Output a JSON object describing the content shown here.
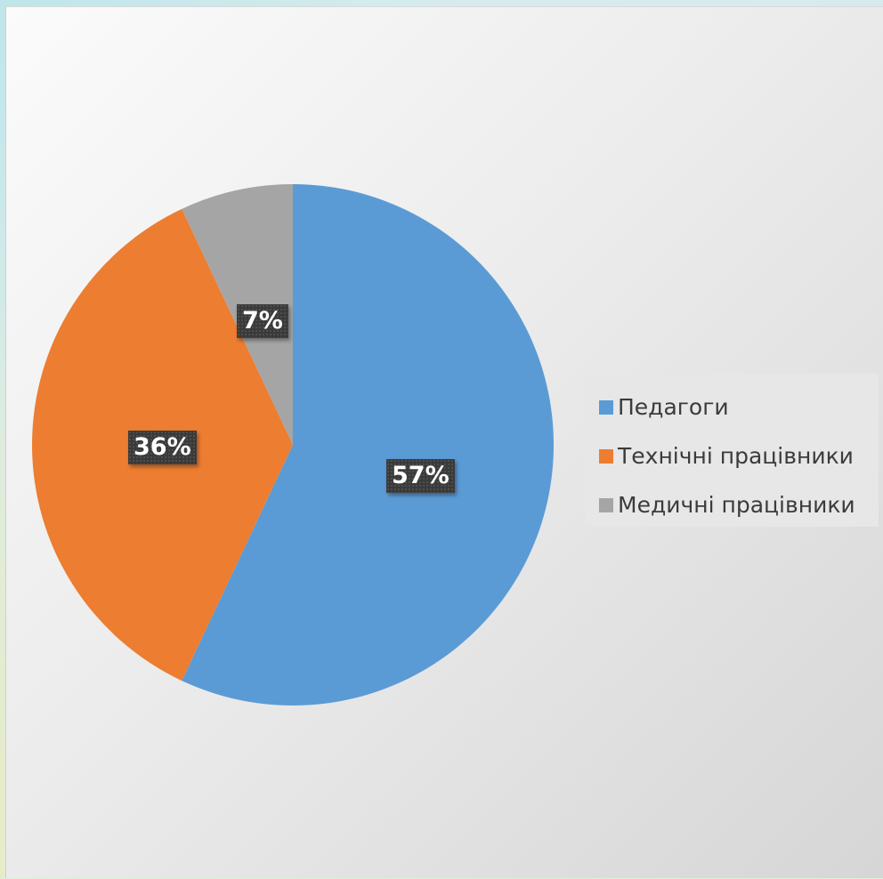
{
  "chart_data": {
    "type": "pie",
    "title": "",
    "categories": [
      "Педагоги",
      "Технічні працівники",
      "Медичні працівники"
    ],
    "values": [
      57,
      36,
      7
    ],
    "labels": [
      "57%",
      "36%",
      "7%"
    ],
    "colors": [
      "#5b9bd5",
      "#ed7d31",
      "#a5a5a5"
    ],
    "legend_position": "right"
  }
}
